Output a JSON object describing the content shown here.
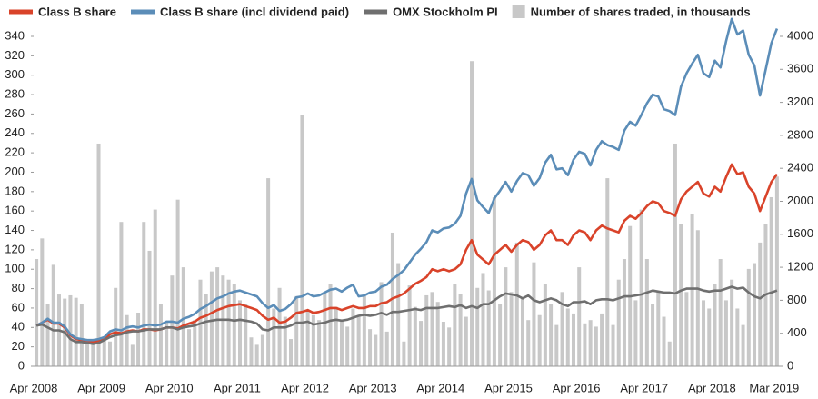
{
  "chart_data": {
    "type": "combo",
    "categories": [
      "Apr 2008",
      null,
      null,
      null,
      null,
      null,
      null,
      null,
      null,
      null,
      null,
      null,
      "Apr 2009",
      null,
      null,
      null,
      null,
      null,
      null,
      null,
      null,
      null,
      null,
      null,
      "Apr 2010",
      null,
      null,
      null,
      null,
      null,
      null,
      null,
      null,
      null,
      null,
      null,
      "Apr 2011",
      null,
      null,
      null,
      null,
      null,
      null,
      null,
      null,
      null,
      null,
      null,
      "Apr 2012",
      null,
      null,
      null,
      null,
      null,
      null,
      null,
      null,
      null,
      null,
      null,
      "Apr 2013",
      null,
      null,
      null,
      null,
      null,
      null,
      null,
      null,
      null,
      null,
      null,
      "Apr 2014",
      null,
      null,
      null,
      null,
      null,
      null,
      null,
      null,
      null,
      null,
      null,
      "Apr 2015",
      null,
      null,
      null,
      null,
      null,
      null,
      null,
      null,
      null,
      null,
      null,
      "Apr 2016",
      null,
      null,
      null,
      null,
      null,
      null,
      null,
      null,
      null,
      null,
      null,
      "Apr 2017",
      null,
      null,
      null,
      null,
      null,
      null,
      null,
      null,
      null,
      null,
      null,
      "Apr 2018",
      null,
      null,
      null,
      null,
      null,
      null,
      null,
      null,
      null,
      null,
      "Mar 2019"
    ],
    "series": [
      {
        "name": "Class B share",
        "type": "line",
        "color": "#d9432a",
        "values": [
          42,
          45,
          48,
          44,
          44,
          40,
          32,
          28,
          27,
          26,
          25,
          26,
          28,
          33,
          35,
          34,
          36,
          37,
          36,
          38,
          38,
          37,
          38,
          40,
          40,
          39,
          42,
          44,
          46,
          50,
          52,
          55,
          58,
          60,
          62,
          63,
          64,
          62,
          60,
          58,
          52,
          48,
          50,
          45,
          46,
          50,
          55,
          56,
          58,
          55,
          56,
          58,
          60,
          60,
          58,
          60,
          62,
          60,
          60,
          62,
          62,
          65,
          66,
          70,
          72,
          75,
          80,
          85,
          88,
          92,
          100,
          98,
          100,
          98,
          100,
          105,
          120,
          130,
          115,
          110,
          105,
          115,
          120,
          125,
          118,
          125,
          130,
          128,
          120,
          125,
          135,
          140,
          130,
          130,
          125,
          135,
          140,
          138,
          130,
          140,
          145,
          142,
          140,
          138,
          150,
          155,
          152,
          158,
          165,
          170,
          168,
          160,
          158,
          155,
          172,
          180,
          185,
          190,
          178,
          175,
          185,
          180,
          195,
          208,
          198,
          200,
          185,
          178,
          160,
          175,
          190,
          198
        ]
      },
      {
        "name": "Class B share (incl dividend paid)",
        "type": "line",
        "color": "#5b8db8",
        "values": [
          42,
          45,
          49,
          45,
          45,
          41,
          33,
          29,
          28,
          27,
          27,
          28,
          30,
          36,
          38,
          37,
          40,
          41,
          40,
          42,
          43,
          42,
          43,
          46,
          46,
          45,
          49,
          51,
          54,
          59,
          62,
          66,
          70,
          72,
          75,
          77,
          78,
          76,
          74,
          72,
          65,
          60,
          63,
          57,
          59,
          64,
          71,
          72,
          75,
          72,
          73,
          76,
          79,
          80,
          77,
          81,
          84,
          72,
          73,
          76,
          77,
          82,
          84,
          90,
          94,
          99,
          107,
          115,
          121,
          128,
          140,
          138,
          142,
          143,
          147,
          155,
          178,
          193,
          171,
          164,
          158,
          173,
          181,
          190,
          180,
          191,
          199,
          197,
          186,
          194,
          210,
          218,
          203,
          204,
          197,
          213,
          221,
          219,
          207,
          223,
          232,
          228,
          226,
          223,
          243,
          252,
          248,
          259,
          271,
          280,
          278,
          265,
          263,
          259,
          288,
          302,
          312,
          321,
          302,
          298,
          315,
          308,
          335,
          358,
          342,
          346,
          321,
          310,
          279,
          306,
          333,
          348
        ]
      },
      {
        "name": "OMX Stockholm PI",
        "type": "line",
        "color": "#6f6f6f",
        "values": [
          42,
          43,
          40,
          37,
          37,
          35,
          28,
          25,
          25,
          24,
          23,
          24,
          27,
          30,
          32,
          33,
          35,
          36,
          36,
          37,
          38,
          38,
          38,
          40,
          40,
          38,
          40,
          41,
          42,
          44,
          46,
          47,
          48,
          48,
          48,
          47,
          48,
          47,
          46,
          44,
          38,
          37,
          40,
          40,
          40,
          42,
          45,
          45,
          46,
          43,
          44,
          45,
          47,
          48,
          47,
          48,
          50,
          52,
          53,
          52,
          53,
          55,
          53,
          56,
          56,
          57,
          58,
          59,
          58,
          60,
          60,
          60,
          61,
          62,
          61,
          63,
          60,
          62,
          60,
          64,
          64,
          68,
          72,
          75,
          74,
          73,
          70,
          73,
          68,
          66,
          68,
          70,
          68,
          64,
          62,
          66,
          66,
          67,
          64,
          68,
          69,
          69,
          68,
          70,
          72,
          72,
          73,
          74,
          76,
          78,
          77,
          76,
          76,
          75,
          78,
          80,
          80,
          80,
          78,
          77,
          78,
          78,
          80,
          82,
          80,
          81,
          76,
          72,
          70,
          74,
          76,
          78
        ]
      },
      {
        "name": "Number of shares traded, in thousands",
        "type": "bar",
        "axis": "y2",
        "color": "#c8c8c8",
        "values": [
          1300,
          1550,
          750,
          1230,
          870,
          820,
          860,
          830,
          760,
          300,
          280,
          2700,
          350,
          300,
          950,
          1750,
          620,
          260,
          650,
          1750,
          1400,
          1900,
          750,
          550,
          1100,
          2020,
          1200,
          450,
          560,
          1050,
          880,
          1150,
          1200,
          1100,
          1050,
          1000,
          800,
          760,
          350,
          260,
          380,
          2280,
          700,
          950,
          600,
          330,
          850,
          3050,
          680,
          620,
          560,
          900,
          1000,
          720,
          560,
          480,
          700,
          600,
          850,
          450,
          380,
          1020,
          420,
          1620,
          1250,
          300,
          980,
          720,
          550,
          860,
          900,
          780,
          540,
          470,
          1000,
          880,
          600,
          3700,
          950,
          1130,
          920,
          2050,
          760,
          1200,
          900,
          1500,
          820,
          560,
          1260,
          620,
          1000,
          760,
          500,
          900,
          700,
          640,
          1200,
          520,
          560,
          480,
          640,
          2280,
          500,
          1050,
          1300,
          1700,
          800,
          1900,
          1300,
          750,
          900,
          600,
          300,
          2700,
          1730,
          900,
          1850,
          1650,
          800,
          700,
          1000,
          1300,
          800,
          1050,
          700,
          500,
          1180,
          1250,
          1500,
          1730,
          2050,
          2300
        ]
      }
    ],
    "ylim": [
      0,
      340
    ],
    "yticks": [
      0,
      20,
      40,
      60,
      80,
      100,
      120,
      140,
      160,
      180,
      200,
      220,
      240,
      260,
      280,
      300,
      320,
      340
    ],
    "y2lim": [
      0,
      4000
    ],
    "y2ticks": [
      0,
      400,
      800,
      1200,
      1600,
      2000,
      2400,
      2800,
      3200,
      3600,
      4000
    ]
  }
}
